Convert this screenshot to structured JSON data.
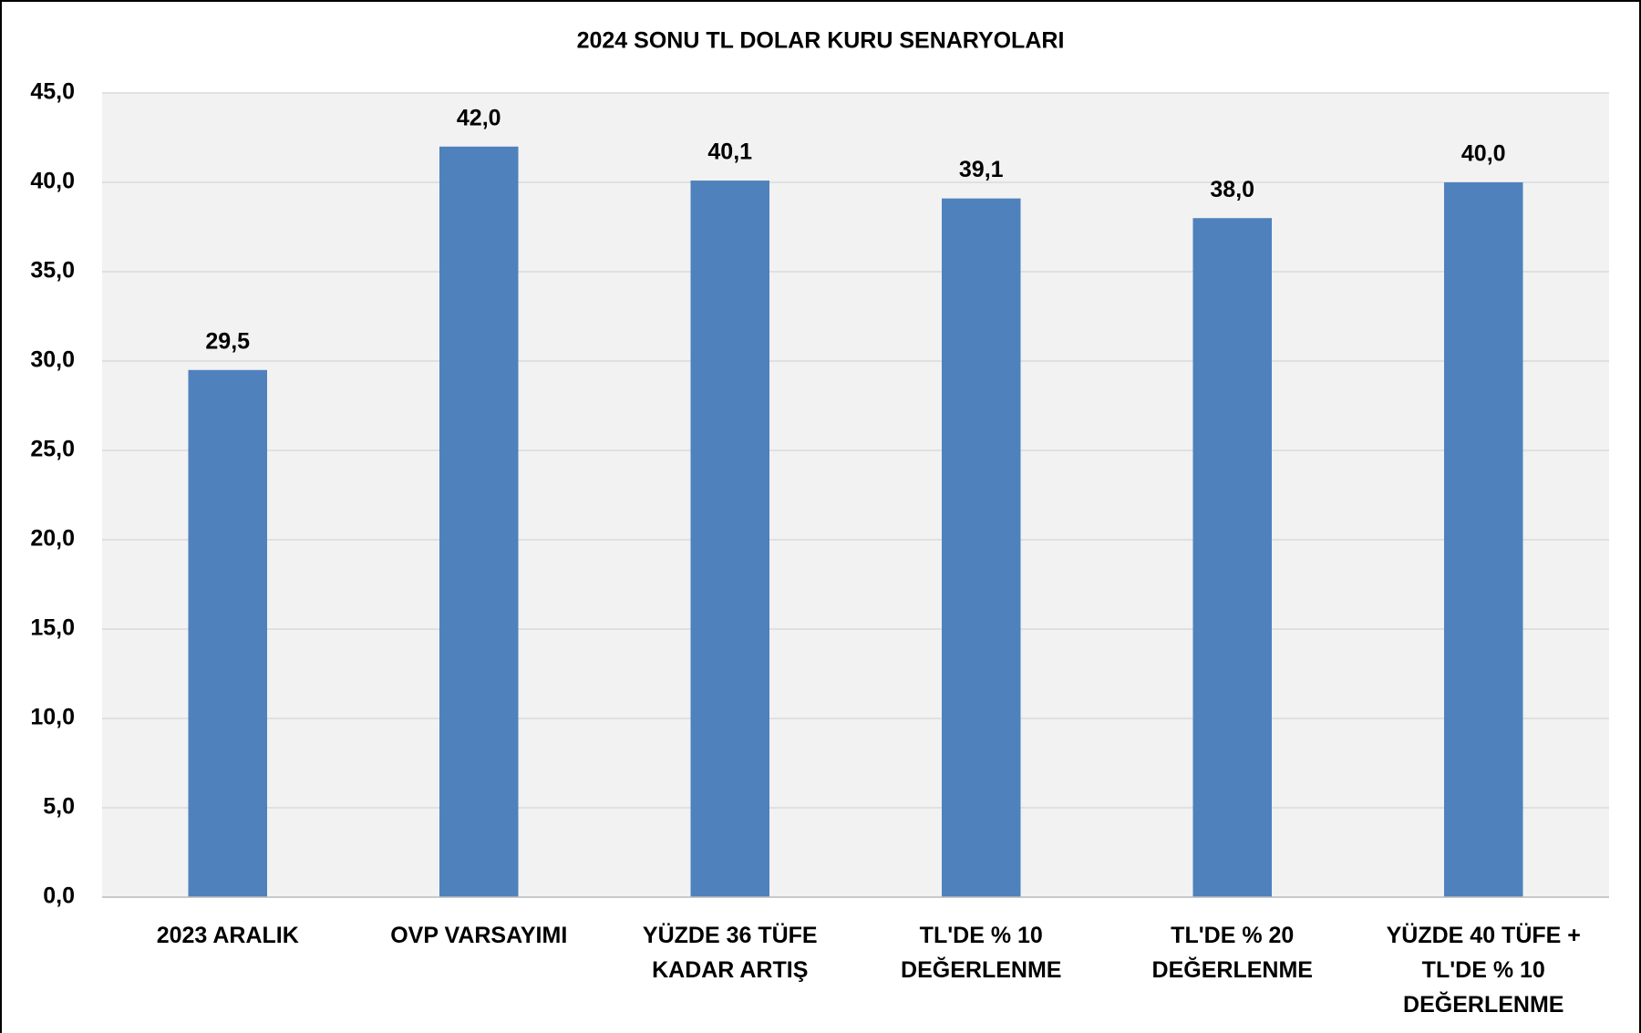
{
  "chart_data": {
    "type": "bar",
    "title": "2024 SONU TL DOLAR KURU SENARYOLARI",
    "categories": [
      "2023 ARALIK",
      "OVP VARSAYIMI",
      "YÜZDE 36 TÜFE\nKADAR ARTIŞ",
      "TL'DE % 10\nDEĞERLENME",
      "TL'DE % 20\nDEĞERLENME",
      "YÜZDE 40 TÜFE +\nTL'DE % 10\nDEĞERLENME"
    ],
    "values": [
      29.5,
      42.0,
      40.1,
      39.1,
      38.0,
      40.0
    ],
    "value_labels": [
      "29,5",
      "42,0",
      "40,1",
      "39,1",
      "38,0",
      "40,0"
    ],
    "color": "#4f81bd",
    "ylim": [
      0,
      45
    ],
    "yticks": [
      {
        "value": 0,
        "label": "0,0"
      },
      {
        "value": 5,
        "label": "5,0"
      },
      {
        "value": 10,
        "label": "10,0"
      },
      {
        "value": 15,
        "label": "15,0"
      },
      {
        "value": 20,
        "label": "20,0"
      },
      {
        "value": 25,
        "label": "25,0"
      },
      {
        "value": 30,
        "label": "30,0"
      },
      {
        "value": 35,
        "label": "35,0"
      },
      {
        "value": 40,
        "label": "40,0"
      },
      {
        "value": 45,
        "label": "45,0"
      }
    ],
    "grid": true
  }
}
